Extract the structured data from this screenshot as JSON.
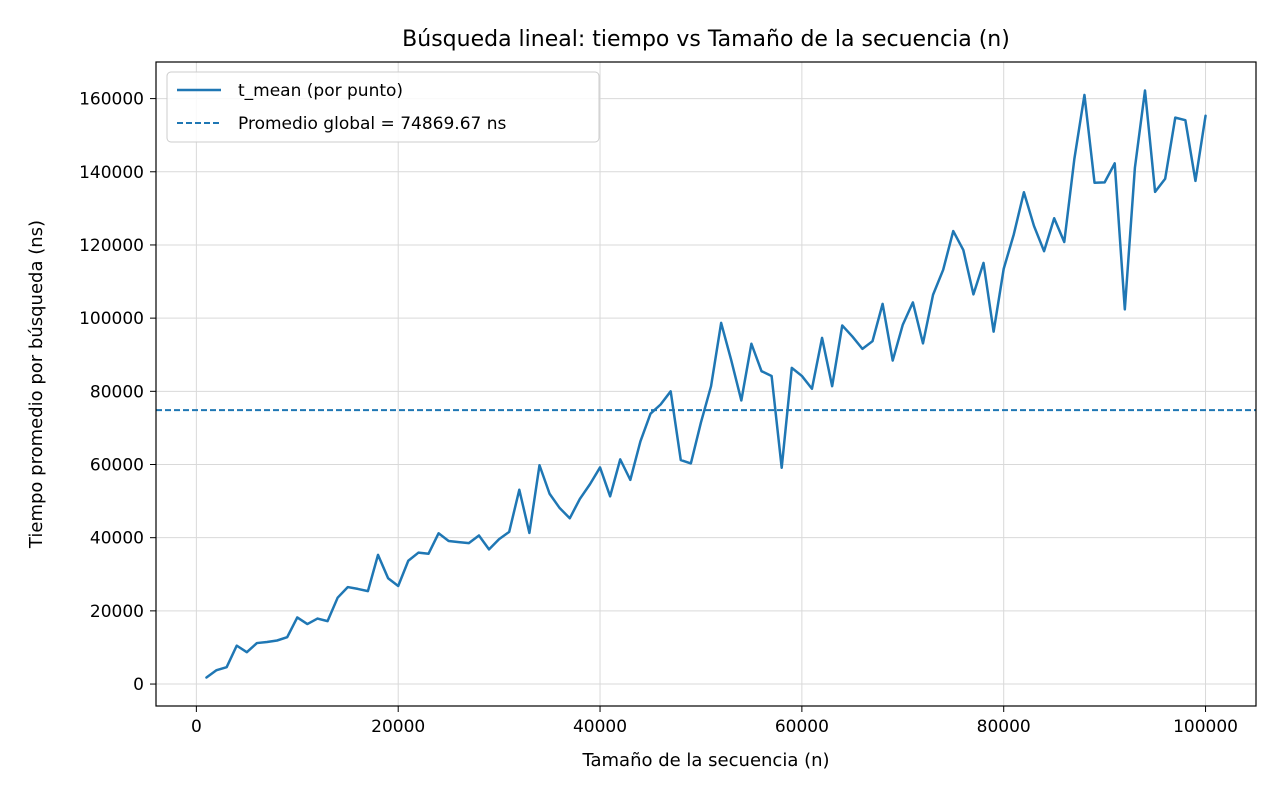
{
  "chart_data": {
    "type": "line",
    "title": "Búsqueda lineal: tiempo vs Tamaño de la secuencia (n)",
    "xlabel": "Tamaño de la secuencia (n)",
    "ylabel": "Tiempo promedio por búsqueda (ns)",
    "xlim": [
      -4000,
      105000
    ],
    "ylim": [
      -6000,
      170000
    ],
    "xticks": [
      0,
      20000,
      40000,
      60000,
      80000,
      100000
    ],
    "yticks": [
      0,
      20000,
      40000,
      60000,
      80000,
      100000,
      120000,
      140000,
      160000
    ],
    "grid": true,
    "legend_position": "top-left",
    "series": [
      {
        "name": "t_mean (por punto)",
        "color": "#1f77b4",
        "style": "solid",
        "x": [
          1000,
          2000,
          3000,
          4000,
          5000,
          6000,
          7000,
          8000,
          9000,
          10000,
          11000,
          12000,
          13000,
          14000,
          15000,
          16000,
          17000,
          18000,
          19000,
          20000,
          21000,
          22000,
          23000,
          24000,
          25000,
          26000,
          27000,
          28000,
          29000,
          30000,
          31000,
          32000,
          33000,
          34000,
          35000,
          36000,
          37000,
          38000,
          39000,
          40000,
          41000,
          42000,
          43000,
          44000,
          45000,
          46000,
          47000,
          48000,
          49000,
          50000,
          51000,
          52000,
          53000,
          54000,
          55000,
          56000,
          57000,
          58000,
          59000,
          60000,
          61000,
          62000,
          63000,
          64000,
          65000,
          66000,
          67000,
          68000,
          69000,
          70000,
          71000,
          72000,
          73000,
          74000,
          75000,
          76000,
          77000,
          78000,
          79000,
          80000,
          81000,
          82000,
          83000,
          84000,
          85000,
          86000,
          87000,
          88000,
          89000,
          90000,
          91000,
          92000,
          93000,
          94000,
          95000,
          96000,
          97000,
          98000,
          99000,
          100000
        ],
        "y": [
          1800,
          3800,
          4600,
          10500,
          8700,
          11200,
          11500,
          11900,
          12800,
          18200,
          16400,
          17900,
          17200,
          23600,
          26500,
          26000,
          25400,
          35300,
          28900,
          26800,
          33700,
          35900,
          35600,
          41200,
          39100,
          38800,
          38500,
          40600,
          36800,
          39600,
          41600,
          53100,
          41300,
          59800,
          52000,
          48100,
          45300,
          50600,
          54600,
          59200,
          51300,
          61400,
          55800,
          66300,
          73900,
          76400,
          80000,
          61200,
          60300,
          71500,
          81400,
          98700,
          88500,
          77500,
          93000,
          85500,
          84200,
          59100,
          86400,
          84200,
          80700,
          94600,
          81400,
          98000,
          95000,
          91600,
          93700,
          103900,
          88400,
          98200,
          104300,
          93100,
          106400,
          113200,
          123800,
          118600,
          106500,
          115100,
          96300,
          113500,
          122900,
          134400,
          125200,
          118300,
          127300,
          120800,
          143500,
          161000,
          137000,
          137100,
          142300,
          102400,
          141100,
          162200,
          134500,
          138100,
          154800,
          154100,
          137500,
          155300
        ]
      },
      {
        "name": "Promedio global = 74869.67 ns",
        "color": "#1f77b4",
        "style": "dashed",
        "y_constant": 74869.67
      }
    ]
  }
}
